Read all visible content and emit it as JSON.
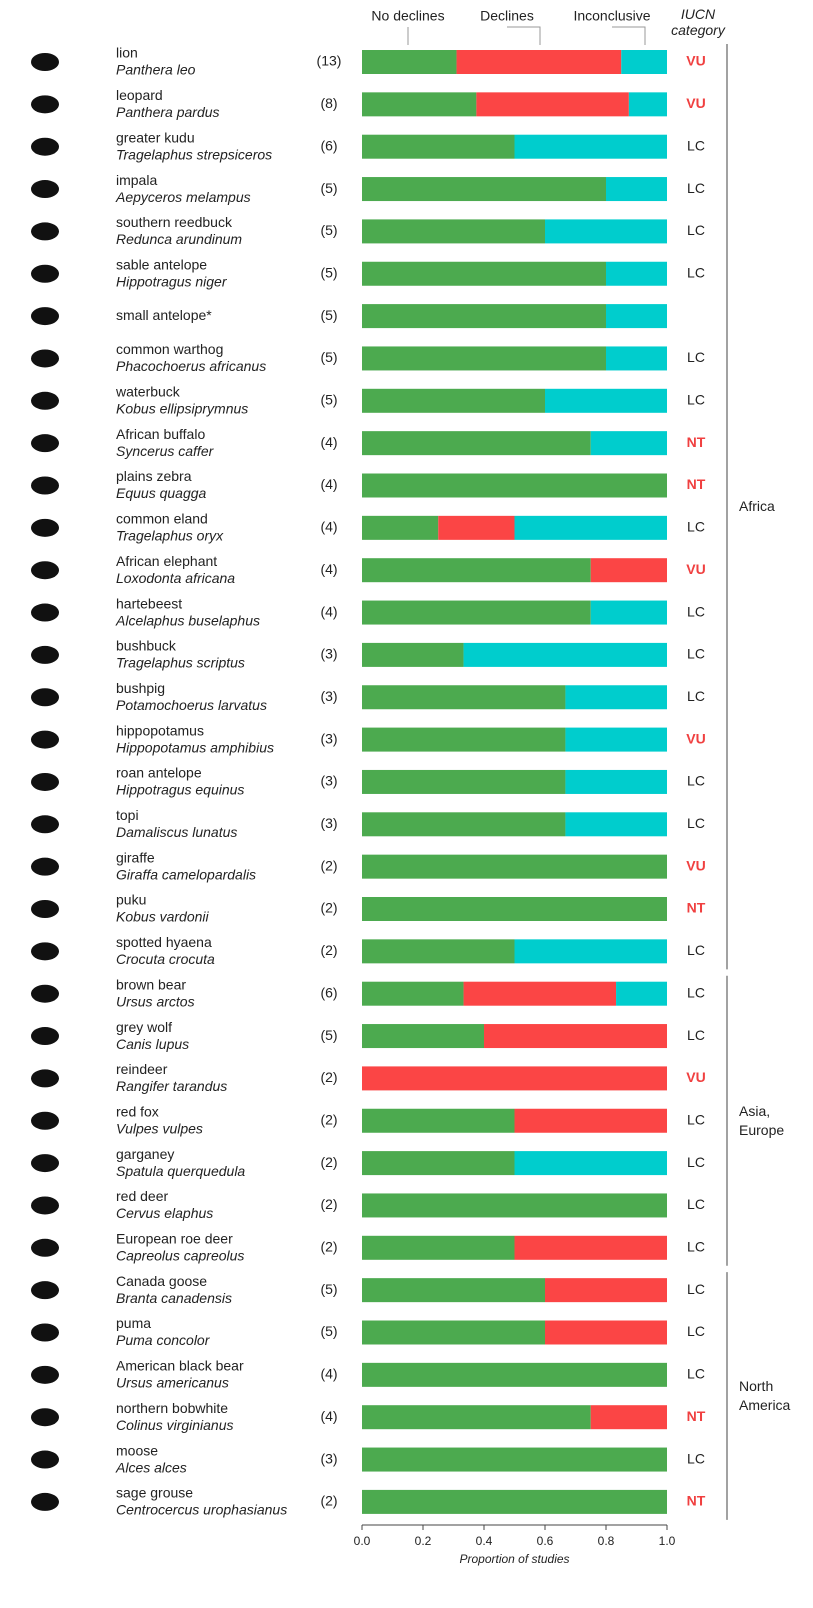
{
  "chart_data": {
    "type": "stacked_barh",
    "categories": [
      "lion",
      "leopard",
      "greater kudu",
      "impala",
      "southern reedbuck",
      "sable antelope",
      "small antelope*",
      "common warthog",
      "waterbuck",
      "African buffalo",
      "plains zebra",
      "common eland",
      "African elephant",
      "hartebeest",
      "bushbuck",
      "bushpig",
      "hippopotamus",
      "roan antelope",
      "topi",
      "giraffe",
      "puku",
      "spotted hyaena",
      "brown bear",
      "grey wolf",
      "reindeer",
      "red fox",
      "garganey",
      "red deer",
      "European roe deer",
      "Canada goose",
      "puma",
      "American black bear",
      "northern bobwhite",
      "moose",
      "sage grouse"
    ],
    "scientific_names": [
      "Panthera leo",
      "Panthera pardus",
      "Tragelaphus strepsiceros",
      "Aepyceros melampus",
      "Redunca arundinum",
      "Hippotragus niger",
      null,
      "Phacochoerus africanus",
      "Kobus ellipsiprymnus",
      "Syncerus caffer",
      "Equus quagga",
      "Tragelaphus oryx",
      "Loxodonta africana",
      "Alcelaphus buselaphus",
      "Tragelaphus scriptus",
      "Potamochoerus larvatus",
      "Hippopotamus amphibius",
      "Hippotragus equinus",
      "Damaliscus lunatus",
      "Giraffa camelopardalis",
      "Kobus vardonii",
      "Crocuta crocuta",
      "Ursus arctos",
      "Canis lupus",
      "Rangifer tarandus",
      "Vulpes vulpes",
      "Spatula querquedula",
      "Cervus elaphus",
      "Capreolus capreolus",
      "Branta canadensis",
      "Puma concolor",
      "Ursus americanus",
      "Colinus virginianus",
      "Alces alces",
      "Centrocercus urophasianus"
    ],
    "studies": [
      "(13)",
      "(8)",
      "(6)",
      "(5)",
      "(5)",
      "(5)",
      "(5)",
      "(5)",
      "(5)",
      "(4)",
      "(4)",
      "(4)",
      "(4)",
      "(4)",
      "(3)",
      "(3)",
      "(3)",
      "(3)",
      "(3)",
      "(2)",
      "(2)",
      "(2)",
      "(6)",
      "(5)",
      "(2)",
      "(2)",
      "(2)",
      "(2)",
      "(2)",
      "(5)",
      "(5)",
      "(4)",
      "(4)",
      "(3)",
      "(2)"
    ],
    "iucn_title": "IUCN category",
    "iucn": [
      "VU",
      "VU",
      "LC",
      "LC",
      "LC",
      "LC",
      null,
      "LC",
      "LC",
      "NT",
      "NT",
      "LC",
      "VU",
      "LC",
      "LC",
      "LC",
      "VU",
      "LC",
      "LC",
      "VU",
      "NT",
      "LC",
      "LC",
      "LC",
      "VU",
      "LC",
      "LC",
      "LC",
      "LC",
      "LC",
      "LC",
      "LC",
      "NT",
      "LC",
      "NT"
    ],
    "iucn_colors": {
      "LC": "#222222",
      "VU": "#f04040",
      "NT": "#f04040"
    },
    "regions": [
      {
        "name": "Africa",
        "start": 0,
        "end": 21
      },
      {
        "name": "Asia, Europe",
        "start": 22,
        "end": 28
      },
      {
        "name": "North America",
        "start": 29,
        "end": 34
      }
    ],
    "series": [
      {
        "name": "No declines",
        "color": "#4caa4f",
        "values": [
          0.31,
          0.375,
          0.5,
          0.8,
          0.6,
          0.8,
          0.8,
          0.8,
          0.6,
          0.75,
          1,
          0.25,
          0.75,
          0.75,
          0.333,
          0.667,
          0.667,
          0.667,
          0.667,
          1,
          1,
          0.5,
          0.333,
          0.4,
          0,
          0.5,
          0.5,
          1,
          0.5,
          0.6,
          0.6,
          1,
          0.75,
          1,
          1
        ]
      },
      {
        "name": "Declines",
        "color": "#fb4545",
        "values": [
          0.54,
          0.5,
          0,
          0,
          0,
          0,
          0,
          0,
          0,
          0,
          0,
          0.25,
          0.25,
          0,
          0,
          0,
          0,
          0,
          0,
          0,
          0,
          0,
          0.5,
          0.6,
          1,
          0.5,
          0,
          0,
          0.5,
          0.4,
          0.4,
          0,
          0.25,
          0,
          0
        ]
      },
      {
        "name": "Inconclusive",
        "color": "#00cdcd",
        "values": [
          0.15,
          0.125,
          0.5,
          0.2,
          0.4,
          0.2,
          0.2,
          0.2,
          0.4,
          0.25,
          0,
          0.5,
          0,
          0.25,
          0.667,
          0.333,
          0.333,
          0.333,
          0.333,
          0,
          0,
          0.5,
          0.167,
          0,
          0,
          0,
          0.5,
          0,
          0,
          0,
          0,
          0,
          0,
          0,
          0
        ]
      }
    ],
    "xlim": [
      0,
      1
    ],
    "xticks": [
      {
        "value": 0,
        "label": "0.0"
      },
      0.2,
      0.4,
      0.6,
      0.8,
      {
        "value": 1,
        "label": "1.0"
      }
    ],
    "xlabel": "Proportion of studies"
  }
}
